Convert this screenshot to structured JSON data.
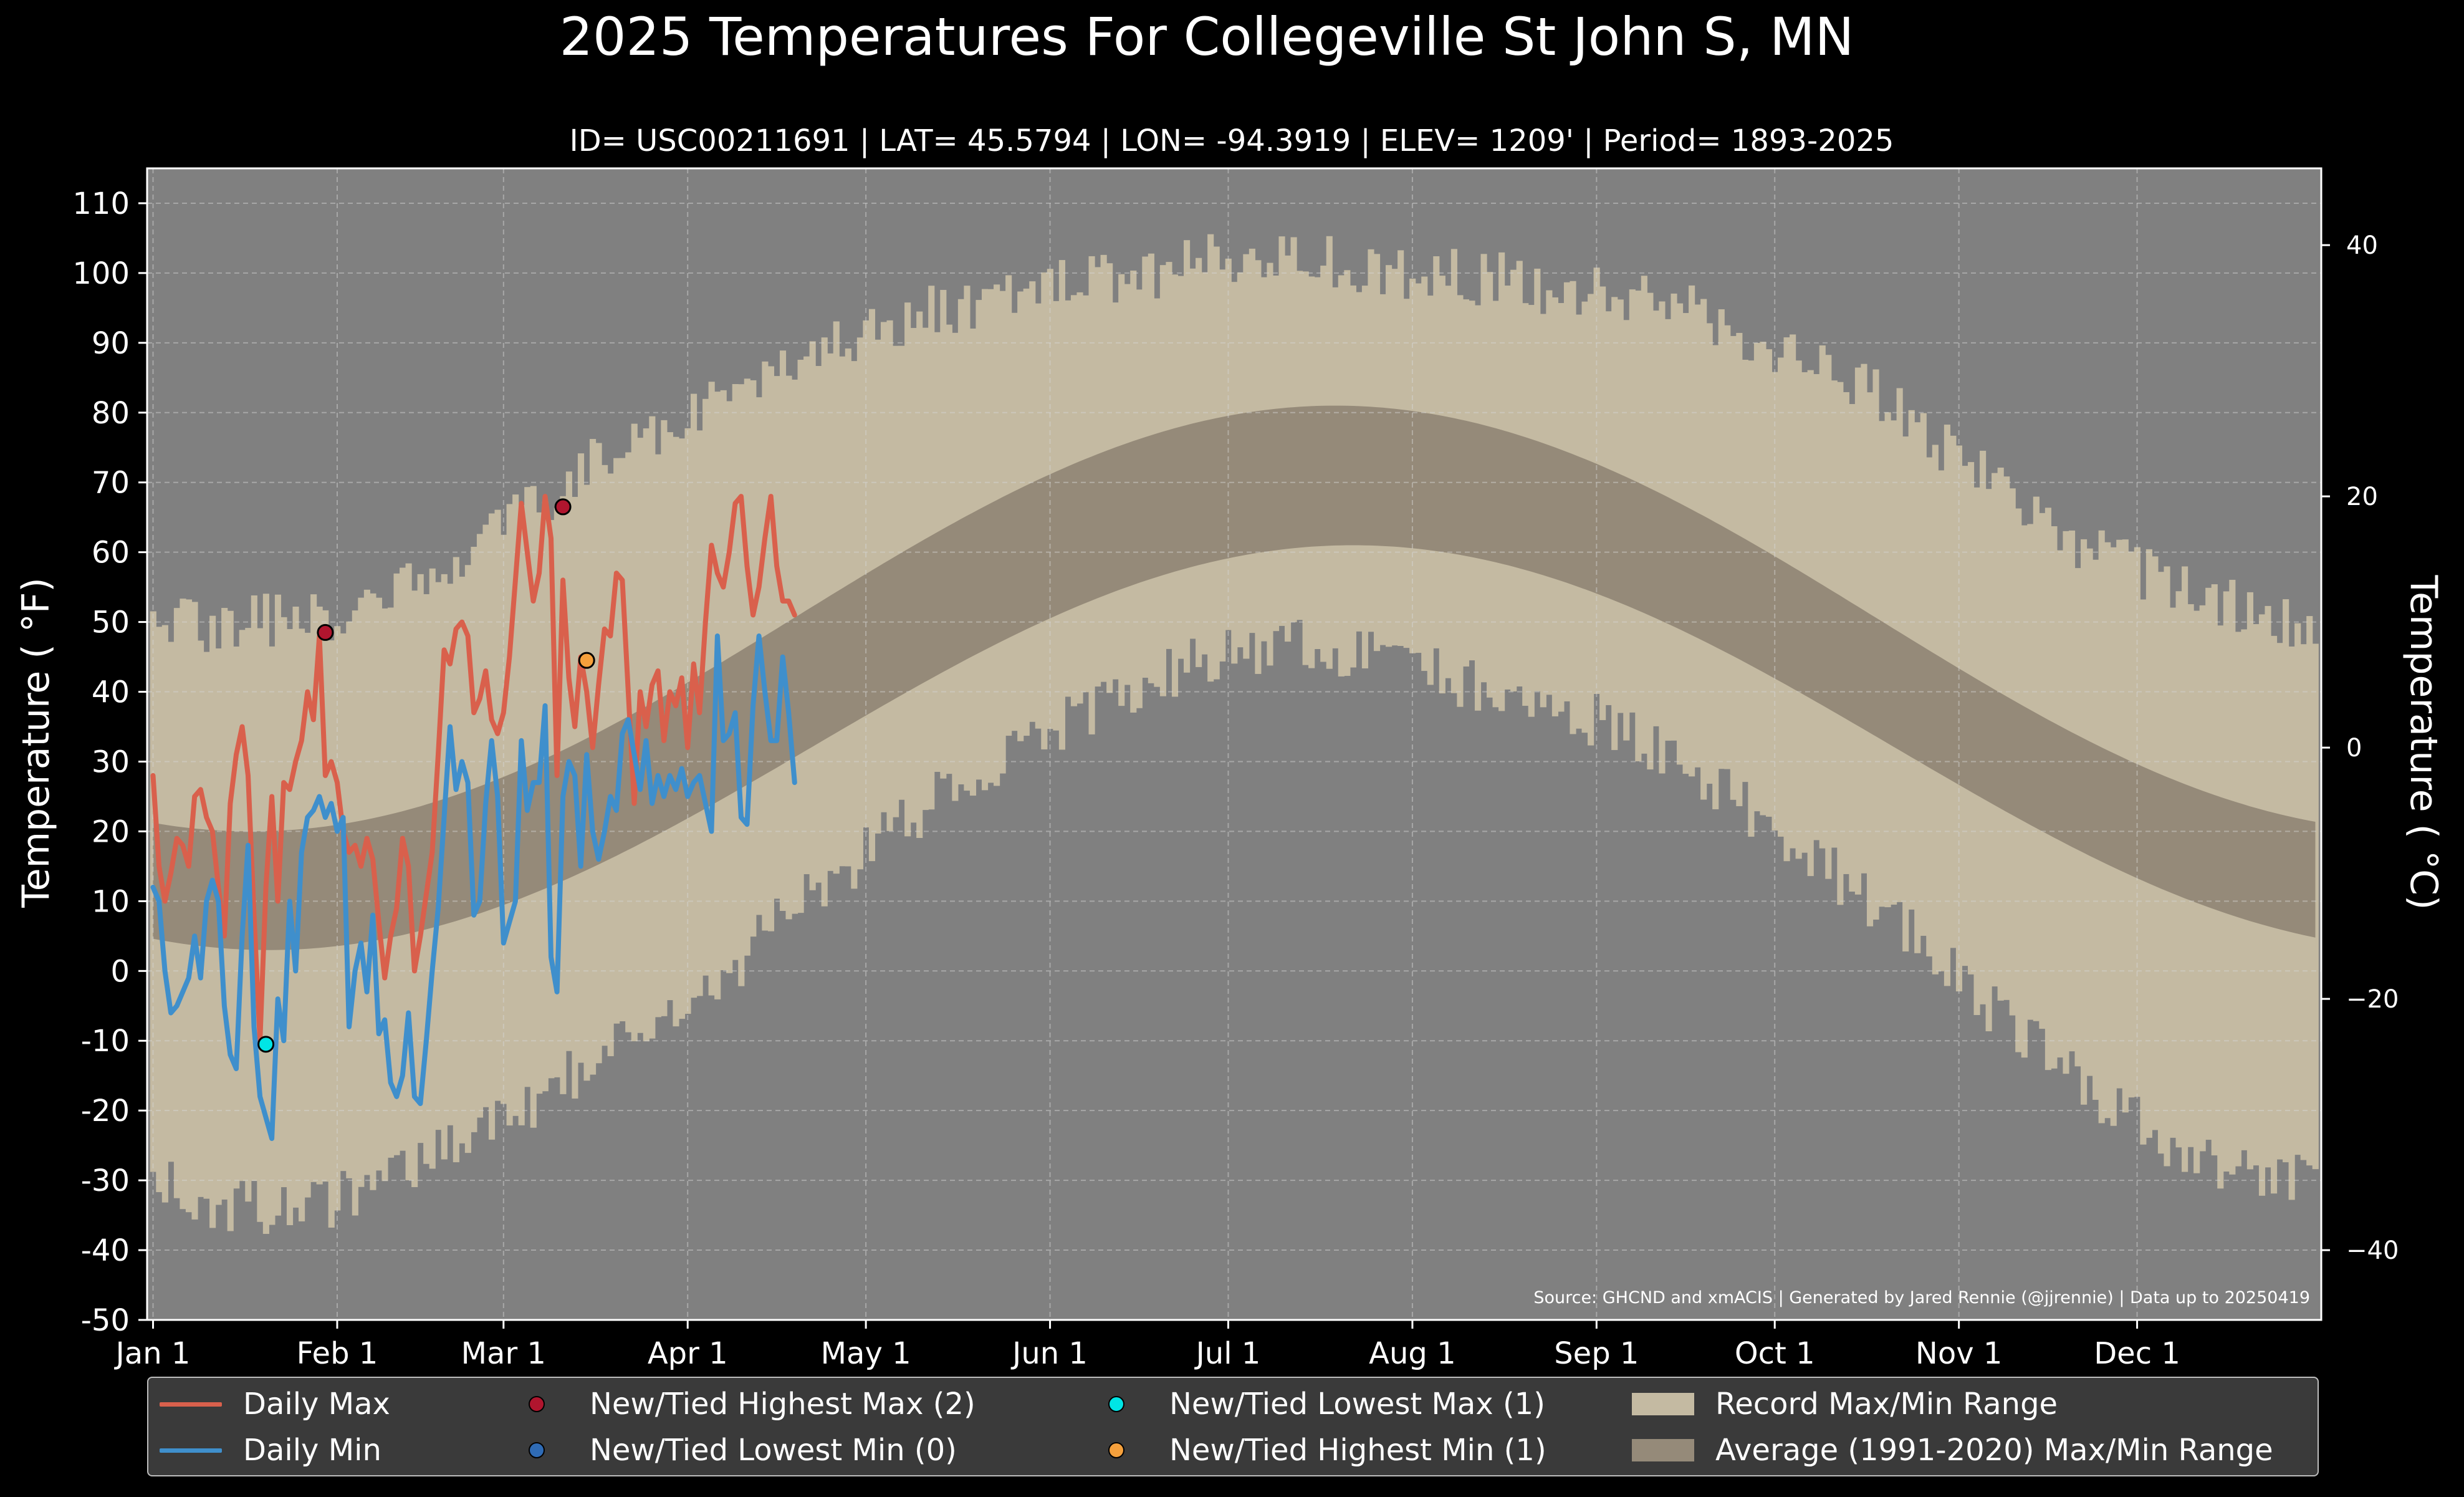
{
  "chart_data": {
    "type": "line",
    "title": "2025 Temperatures For Collegeville St John S, MN",
    "subtitle": "ID= USC00211691 | LAT= 45.5794 | LON= -94.3919 | ELEV= 1209' | Period= 1893-2025",
    "ylabel": "Temperature ($^\\circ$F)",
    "ylabel_right": "Temperature ($^\\circ$C)",
    "ylabel_display": "Temperature ( °F)",
    "ylabel_right_display": "Temperature ( °C)",
    "ylim": [
      -50,
      115
    ],
    "y_ticks": [
      "-50",
      "-40",
      "-30",
      "-20",
      "-10",
      "0",
      "10",
      "20",
      "30",
      "40",
      "50",
      "60",
      "70",
      "80",
      "90",
      "100",
      "110"
    ],
    "y2_ticks": [
      {
        "label": "−40",
        "c": -40
      },
      {
        "label": "−20",
        "c": -20
      },
      {
        "label": "0",
        "c": 0
      },
      {
        "label": "20",
        "c": 20
      },
      {
        "label": "40",
        "c": 40
      }
    ],
    "x_ticks": [
      {
        "label": "Jan 1",
        "day": 1
      },
      {
        "label": "Feb 1",
        "day": 32
      },
      {
        "label": "Mar 1",
        "day": 60
      },
      {
        "label": "Apr 1",
        "day": 91
      },
      {
        "label": "May 1",
        "day": 121
      },
      {
        "label": "Jun 1",
        "day": 152
      },
      {
        "label": "Jul 1",
        "day": 182
      },
      {
        "label": "Aug 1",
        "day": 213
      },
      {
        "label": "Sep 1",
        "day": 244
      },
      {
        "label": "Oct 1",
        "day": 274
      },
      {
        "label": "Nov 1",
        "day": 305
      },
      {
        "label": "Dec 1",
        "day": 335
      }
    ],
    "grid": true,
    "source_note": "Source: GHCND and xmACIS | Generated by Jared Rennie (@jjrennie) | Data up to 20250419",
    "record_range_profile": {
      "day": [
        1,
        15,
        32,
        45,
        60,
        75,
        91,
        105,
        121,
        135,
        152,
        168,
        182,
        196,
        213,
        228,
        244,
        258,
        274,
        290,
        305,
        320,
        335,
        350,
        365
      ],
      "record_max": [
        48,
        49,
        50,
        56,
        62,
        72,
        79,
        86,
        91,
        94,
        98,
        99,
        101,
        101,
        99,
        98,
        96,
        94,
        88,
        82,
        72,
        63,
        56,
        52,
        48
      ],
      "record_min": [
        -30,
        -34,
        -33,
        -28,
        -22,
        -13,
        -6,
        6,
        17,
        26,
        34,
        41,
        46,
        47,
        44,
        39,
        36,
        30,
        20,
        10,
        -1,
        -12,
        -22,
        -29,
        -30
      ]
    },
    "series": [
      {
        "name": "Daily Max",
        "color": "#d9604c",
        "x": [
          1,
          2,
          3,
          4,
          5,
          6,
          7,
          8,
          9,
          10,
          11,
          12,
          13,
          14,
          15,
          16,
          17,
          18,
          19,
          20,
          21,
          22,
          23,
          24,
          25,
          26,
          27,
          28,
          29,
          30,
          31,
          32,
          33,
          34,
          35,
          36,
          37,
          38,
          39,
          40,
          41,
          42,
          43,
          44,
          45,
          46,
          47,
          48,
          49,
          50,
          51,
          52,
          53,
          54,
          55,
          56,
          57,
          58,
          59,
          60,
          61,
          62,
          63,
          64,
          65,
          66,
          67,
          68,
          69,
          70,
          71,
          72,
          73,
          74,
          75,
          76,
          77,
          78,
          79,
          80,
          81,
          82,
          83,
          84,
          85,
          86,
          87,
          88,
          89,
          90,
          91,
          92,
          93,
          94,
          95,
          96,
          97,
          98,
          99,
          100,
          101,
          102,
          103,
          104,
          105,
          106,
          107,
          108,
          109
        ],
        "values": [
          28,
          15,
          10,
          14,
          19,
          18,
          15,
          25,
          26,
          22,
          20,
          12,
          5,
          24,
          31,
          35,
          28,
          8,
          -10,
          12,
          25,
          10,
          27,
          26,
          30,
          33,
          40,
          36,
          48,
          28,
          30,
          27,
          20,
          17,
          18,
          15,
          19,
          16,
          7,
          -1,
          5,
          9,
          19,
          15,
          0,
          5,
          11,
          17,
          31,
          46,
          44,
          49,
          50,
          48,
          37,
          39,
          43,
          36,
          34,
          37,
          45,
          56,
          67,
          60,
          53,
          57,
          68,
          62,
          28,
          56,
          42,
          35,
          45,
          40,
          32,
          41,
          49,
          48,
          57,
          56,
          40,
          24,
          40,
          35,
          41,
          43,
          33,
          40,
          38,
          42,
          32,
          44,
          37,
          50,
          61,
          57,
          55,
          60,
          67,
          68,
          58,
          51,
          55,
          62,
          68,
          58,
          53,
          53,
          51
        ]
      },
      {
        "name": "Daily Min",
        "color": "#3f8fcc",
        "x": [
          1,
          2,
          3,
          4,
          5,
          6,
          7,
          8,
          9,
          10,
          11,
          12,
          13,
          14,
          15,
          16,
          17,
          18,
          19,
          20,
          21,
          22,
          23,
          24,
          25,
          26,
          27,
          28,
          29,
          30,
          31,
          32,
          33,
          34,
          35,
          36,
          37,
          38,
          39,
          40,
          41,
          42,
          43,
          44,
          45,
          46,
          47,
          48,
          49,
          50,
          51,
          52,
          53,
          54,
          55,
          56,
          57,
          58,
          59,
          60,
          61,
          62,
          63,
          64,
          65,
          66,
          67,
          68,
          69,
          70,
          71,
          72,
          73,
          74,
          75,
          76,
          77,
          78,
          79,
          80,
          81,
          82,
          83,
          84,
          85,
          86,
          87,
          88,
          89,
          90,
          91,
          92,
          93,
          94,
          95,
          96,
          97,
          98,
          99,
          100,
          101,
          102,
          103,
          104,
          105,
          106,
          107,
          108,
          109
        ],
        "values": [
          12,
          10,
          0,
          -6,
          -5,
          -3,
          -1,
          5,
          -1,
          10,
          13,
          10,
          -5,
          -12,
          -14,
          5,
          18,
          -8,
          -18,
          -21,
          -24,
          -4,
          -10,
          10,
          0,
          17,
          22,
          23,
          25,
          22,
          24,
          20,
          22,
          -8,
          0,
          4,
          -3,
          8,
          -9,
          -7,
          -16,
          -18,
          -15,
          -6,
          -18,
          -19,
          -10,
          0,
          9,
          22,
          35,
          26,
          30,
          27,
          8,
          10,
          24,
          33,
          25,
          4,
          7,
          10,
          33,
          23,
          27,
          27,
          38,
          2,
          -3,
          25,
          30,
          28,
          15,
          31,
          20,
          16,
          20,
          25,
          23,
          34,
          36,
          31,
          26,
          33,
          24,
          28,
          25,
          28,
          26,
          29,
          25,
          27,
          28,
          24,
          20,
          48,
          33,
          34,
          37,
          22,
          21,
          38,
          48,
          40,
          33,
          33,
          45,
          37,
          27
        ]
      }
    ],
    "markers": [
      {
        "name": "New/Tied Highest Max (2)",
        "color": "#b0152e",
        "points": [
          {
            "day": 30,
            "value": 48.5
          },
          {
            "day": 70,
            "value": 66.5
          }
        ]
      },
      {
        "name": "New/Tied Lowest Min (0)",
        "color": "#2f6bb5",
        "points": []
      },
      {
        "name": "New/Tied Lowest Max (1)",
        "color": "#00e5e5",
        "points": [
          {
            "day": 20,
            "value": -10.5
          }
        ]
      },
      {
        "name": "New/Tied Highest Min (1)",
        "color": "#f5a03c",
        "points": [
          {
            "day": 74,
            "value": 44.5
          }
        ]
      }
    ],
    "average_range": {
      "name": "Average (1991-2020) Max/Min Range",
      "color": "#958a79",
      "max_peak_day": 200,
      "max_low": 20,
      "max_high": 81,
      "min_peak_day": 203,
      "min_low": 3,
      "min_high": 61
    },
    "record_range_name": "Record Max/Min Range",
    "record_range_color": "#c4baa2",
    "background_color": "#808080",
    "legend_position": "bottom"
  },
  "legend": {
    "items": [
      {
        "label": "Daily Max",
        "kind": "line",
        "color": "#d9604c"
      },
      {
        "label": "Daily Min",
        "kind": "line",
        "color": "#3f8fcc"
      },
      {
        "label": "New/Tied Highest Max (2)",
        "kind": "dot",
        "color": "#b0152e"
      },
      {
        "label": "New/Tied Lowest Min (0)",
        "kind": "dot",
        "color": "#2f6bb5"
      },
      {
        "label": "New/Tied Lowest Max (1)",
        "kind": "dot",
        "color": "#00e5e5"
      },
      {
        "label": "New/Tied Highest Min (1)",
        "kind": "dot",
        "color": "#f5a03c"
      },
      {
        "label": "Record Max/Min Range",
        "kind": "patch",
        "color": "#c4baa2"
      },
      {
        "label": "Average (1991-2020) Max/Min Range",
        "kind": "patch",
        "color": "#958a79"
      }
    ]
  }
}
